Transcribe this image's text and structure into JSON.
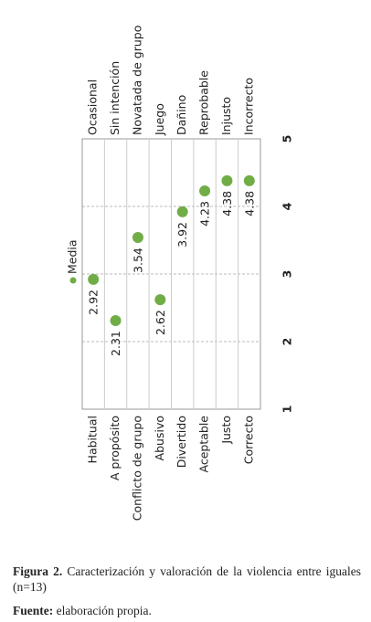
{
  "chart_data": {
    "type": "dot",
    "categories": [
      "Habitual",
      "A propósito",
      "Conflicto de grupo",
      "Abusivo",
      "Divertido",
      "Aceptable",
      "Justo",
      "Correcto"
    ],
    "right_labels": [
      "Ocasional",
      "Sin intención",
      "Novatada de grupo",
      "Juego",
      "Dañino",
      "Reprobable",
      "Injusto",
      "Incorrecto"
    ],
    "series": [
      {
        "name": "Media",
        "color": "#70ad47",
        "values": [
          2.92,
          2.31,
          3.54,
          2.62,
          3.92,
          4.23,
          4.38,
          4.38
        ]
      }
    ],
    "xlim": [
      1,
      5
    ],
    "xticks": [
      1,
      2,
      3,
      4,
      5
    ],
    "grid": true
  },
  "caption": {
    "label": "Figura 2.",
    "text": "Caracterización y valoración de la violencia entre iguales (n=13)",
    "source_label": "Fuente:",
    "source_text": "elaboración propia."
  }
}
